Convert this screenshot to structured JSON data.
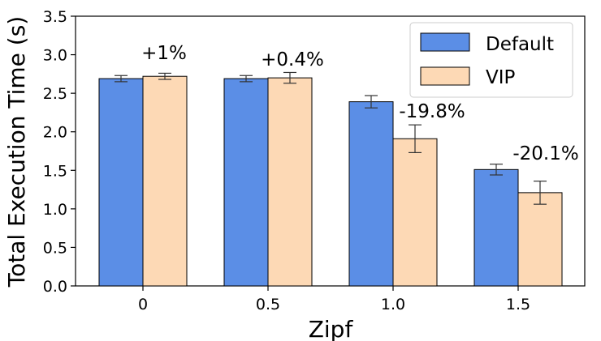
{
  "chart_data": {
    "type": "bar",
    "title": "",
    "xlabel": "Zipf",
    "ylabel": "Total Execution Time (s)",
    "categories": [
      "0",
      "0.5",
      "1.0",
      "1.5"
    ],
    "ylim": [
      0,
      3.5
    ],
    "yticks": [
      "0.0",
      "0.5",
      "1.0",
      "1.5",
      "2.0",
      "2.5",
      "3.0",
      "3.5"
    ],
    "series": [
      {
        "name": "Default",
        "color": "#5b8ee6",
        "values": [
          2.69,
          2.69,
          2.39,
          1.51
        ],
        "errors": [
          0.04,
          0.04,
          0.08,
          0.07
        ]
      },
      {
        "name": "VIP",
        "color": "#fdd9b5",
        "values": [
          2.72,
          2.7,
          1.91,
          1.21
        ],
        "errors": [
          0.04,
          0.07,
          0.18,
          0.15
        ]
      }
    ],
    "annotations": [
      "+1%",
      "+0.4%",
      "-19.8%",
      "-20.1%"
    ],
    "legend_position": "top-right",
    "grid": false
  }
}
